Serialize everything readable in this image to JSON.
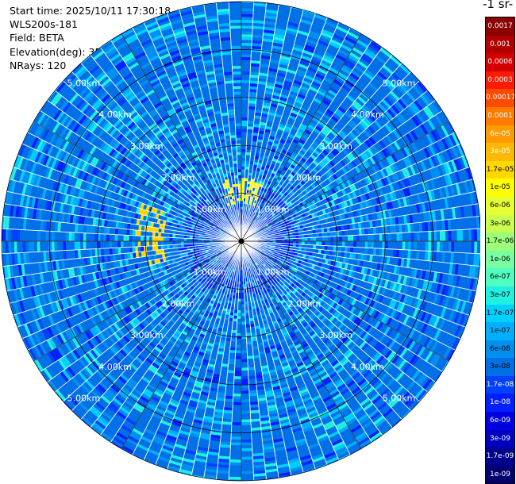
{
  "info": {
    "start_time": "Start time: 2025/10/11 17:30:18",
    "instrument": "WLS200s-181",
    "field": "Field: BETA",
    "elevation": "Elevation(deg): 35.00",
    "nrays": "NRays: 120"
  },
  "colorbar": {
    "unit_label": "-1 sr-",
    "levels": [
      {
        "label": "0.0017",
        "color": "#8b0000",
        "text": "#ffffff"
      },
      {
        "label": "0.001",
        "color": "#b00000",
        "text": "#ffffff"
      },
      {
        "label": "0.0006",
        "color": "#d40000",
        "text": "#ffffff"
      },
      {
        "label": "0.0003",
        "color": "#ff1a00",
        "text": "#ffffff"
      },
      {
        "label": "0.00017",
        "color": "#ff4a00",
        "text": "#ffffff"
      },
      {
        "label": "0.0001",
        "color": "#ff7a00",
        "text": "#ffffff"
      },
      {
        "label": "6e-05",
        "color": "#ff9a00",
        "text": "#ffffff"
      },
      {
        "label": "3e-05",
        "color": "#ffb800",
        "text": "#ffffff"
      },
      {
        "label": "1.7e-05",
        "color": "#ffd800",
        "text": "#000000"
      },
      {
        "label": "1e-05",
        "color": "#ffff00",
        "text": "#000000"
      },
      {
        "label": "6e-06",
        "color": "#e6ff33",
        "text": "#000000"
      },
      {
        "label": "3e-06",
        "color": "#c8ff50",
        "text": "#000000"
      },
      {
        "label": "1.7e-06",
        "color": "#9cff7a",
        "text": "#000000"
      },
      {
        "label": "1e-06",
        "color": "#7affa0",
        "text": "#000000"
      },
      {
        "label": "6e-07",
        "color": "#50ffc0",
        "text": "#000000"
      },
      {
        "label": "3e-07",
        "color": "#20f0e0",
        "text": "#000000"
      },
      {
        "label": "1.7e-07",
        "color": "#00d0ff",
        "text": "#000000"
      },
      {
        "label": "1e-07",
        "color": "#00b0ff",
        "text": "#000000"
      },
      {
        "label": "6e-08",
        "color": "#0090f0",
        "text": "#000000"
      },
      {
        "label": "3e-08",
        "color": "#0070e8",
        "text": "#000000"
      },
      {
        "label": "1.7e-08",
        "color": "#0040ff",
        "text": "#ffffff"
      },
      {
        "label": "1e-08",
        "color": "#0020ff",
        "text": "#ffffff"
      },
      {
        "label": "6e-09",
        "color": "#0000e0",
        "text": "#ffffff"
      },
      {
        "label": "3e-09",
        "color": "#0000c0",
        "text": "#ffffff"
      },
      {
        "label": "1.7e-09",
        "color": "#000090",
        "text": "#ffffff"
      },
      {
        "label": "1e-09",
        "color": "#000070",
        "text": "#ffffff"
      }
    ]
  },
  "chart_data": {
    "type": "heatmap",
    "projection": "polar-ppi",
    "nrays": 120,
    "max_range_km": 5.0,
    "grid": true,
    "range_rings_km": [
      1.0,
      2.0,
      3.0,
      4.0,
      5.0
    ],
    "ring_labels": {
      "1.0": "1.00km",
      "2.0": "2.00km",
      "3.0": "3.00km",
      "4.0": "4.00km",
      "5.0": "5.00km"
    },
    "spokes_deg": [
      0,
      30,
      60,
      90,
      120,
      150,
      180,
      210,
      240,
      270,
      300,
      330
    ],
    "dominant_level": "3e-08",
    "features": [
      {
        "description": "near-range low-backscatter region",
        "range_km": [
          0.0,
          1.2
        ],
        "level": "1e-08"
      },
      {
        "description": "high-backscatter patch north",
        "azimuth_deg": [
          340,
          20
        ],
        "range_km": [
          0.8,
          1.3
        ],
        "level": "1e-05"
      },
      {
        "description": "high-backscatter band west",
        "azimuth_deg": [
          255,
          290
        ],
        "range_km": [
          1.6,
          2.2
        ],
        "level": "1.7e-05"
      }
    ]
  }
}
